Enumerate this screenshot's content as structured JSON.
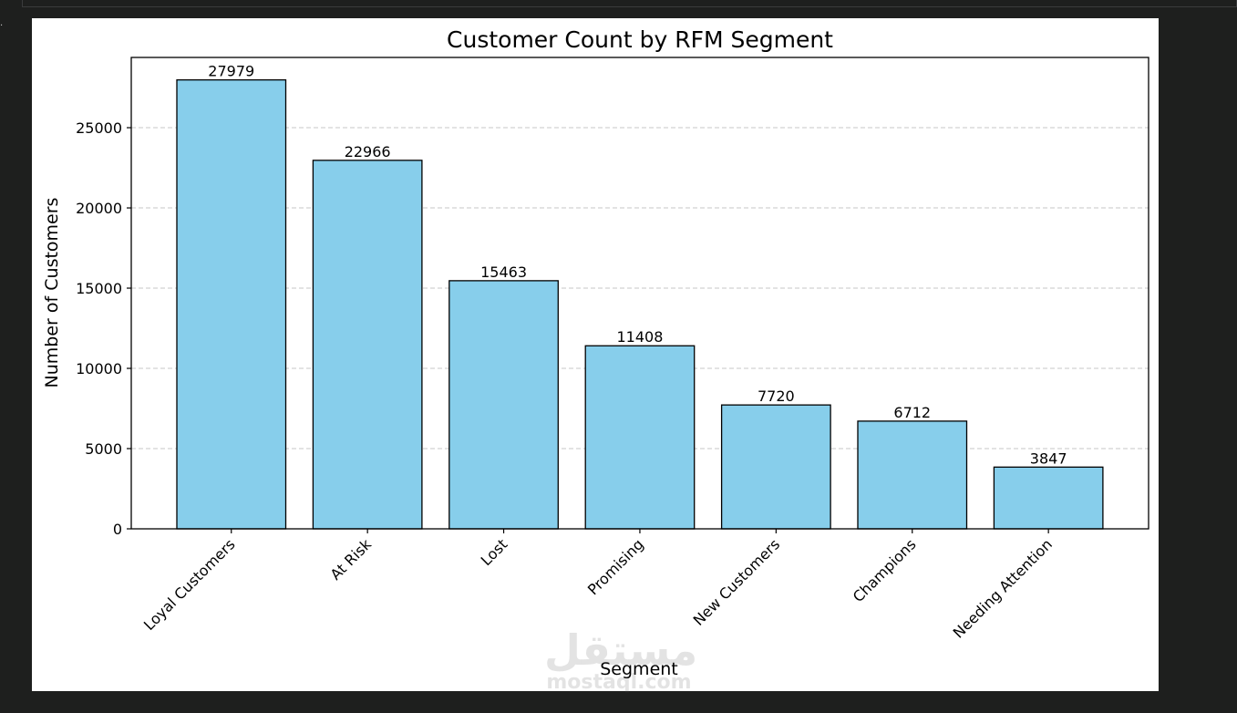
{
  "cell_marker": ".",
  "watermark": {
    "arabic": "مستقل",
    "latin": "mostaql.com"
  },
  "chart_data": {
    "type": "bar",
    "title": "Customer Count by RFM Segment",
    "xlabel": "Segment",
    "ylabel": "Number of Customers",
    "categories": [
      "Loyal Customers",
      "At Risk",
      "Lost",
      "Promising",
      "New Customers",
      "Champions",
      "Needing Attention"
    ],
    "values": [
      27979,
      22966,
      15463,
      11408,
      7720,
      6712,
      3847
    ],
    "data_labels": [
      "27979",
      "22966",
      "15463",
      "11408",
      "7720",
      "6712",
      "3847"
    ],
    "y_ticks": [
      0,
      5000,
      10000,
      15000,
      20000,
      25000
    ],
    "ylim": [
      0,
      29378
    ],
    "grid": "y-dashed",
    "bar_color": "#87ceeb",
    "bar_edge_color": "#000000",
    "grid_color": "#b0b0b0"
  }
}
